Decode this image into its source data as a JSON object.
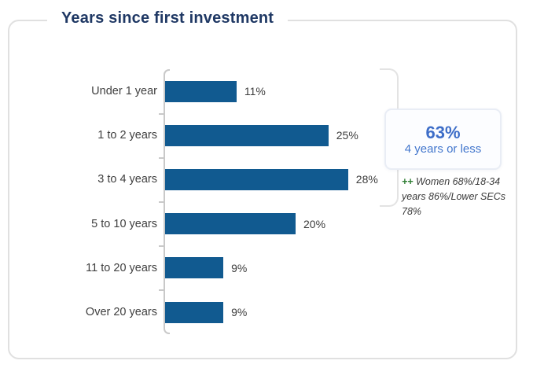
{
  "card": {
    "title": "Years since first investment"
  },
  "chart_data": {
    "type": "bar",
    "orientation": "horizontal",
    "title": "Years since first investment",
    "categories": [
      "Under 1 year",
      "1 to 2 years",
      "3 to 4 years",
      "5 to 10 years",
      "11 to 20 years",
      "Over 20 years"
    ],
    "values": [
      11,
      25,
      28,
      20,
      9,
      9
    ],
    "value_labels": [
      "11%",
      "25%",
      "28%",
      "20%",
      "9%",
      "9%"
    ],
    "xlabel": "",
    "ylabel": "",
    "xlim": [
      0,
      30
    ],
    "grid": false,
    "legend": false,
    "bar_color": "#115a90"
  },
  "callout": {
    "headline": "63%",
    "subline": "4 years or less"
  },
  "annotation": {
    "marker": "++",
    "text": " Women 68%/18-34 years 86%/Lower SECs 78%",
    "marker_color": "#2e7d32"
  },
  "colors": {
    "title": "#1f3864",
    "bar": "#115a90",
    "accent_blue": "#3e6ec8",
    "label_gray": "#3f3f3f",
    "axis_gray": "#c9c9c9",
    "card_border": "#e0e0e0",
    "annotation_green": "#2e7d32"
  }
}
